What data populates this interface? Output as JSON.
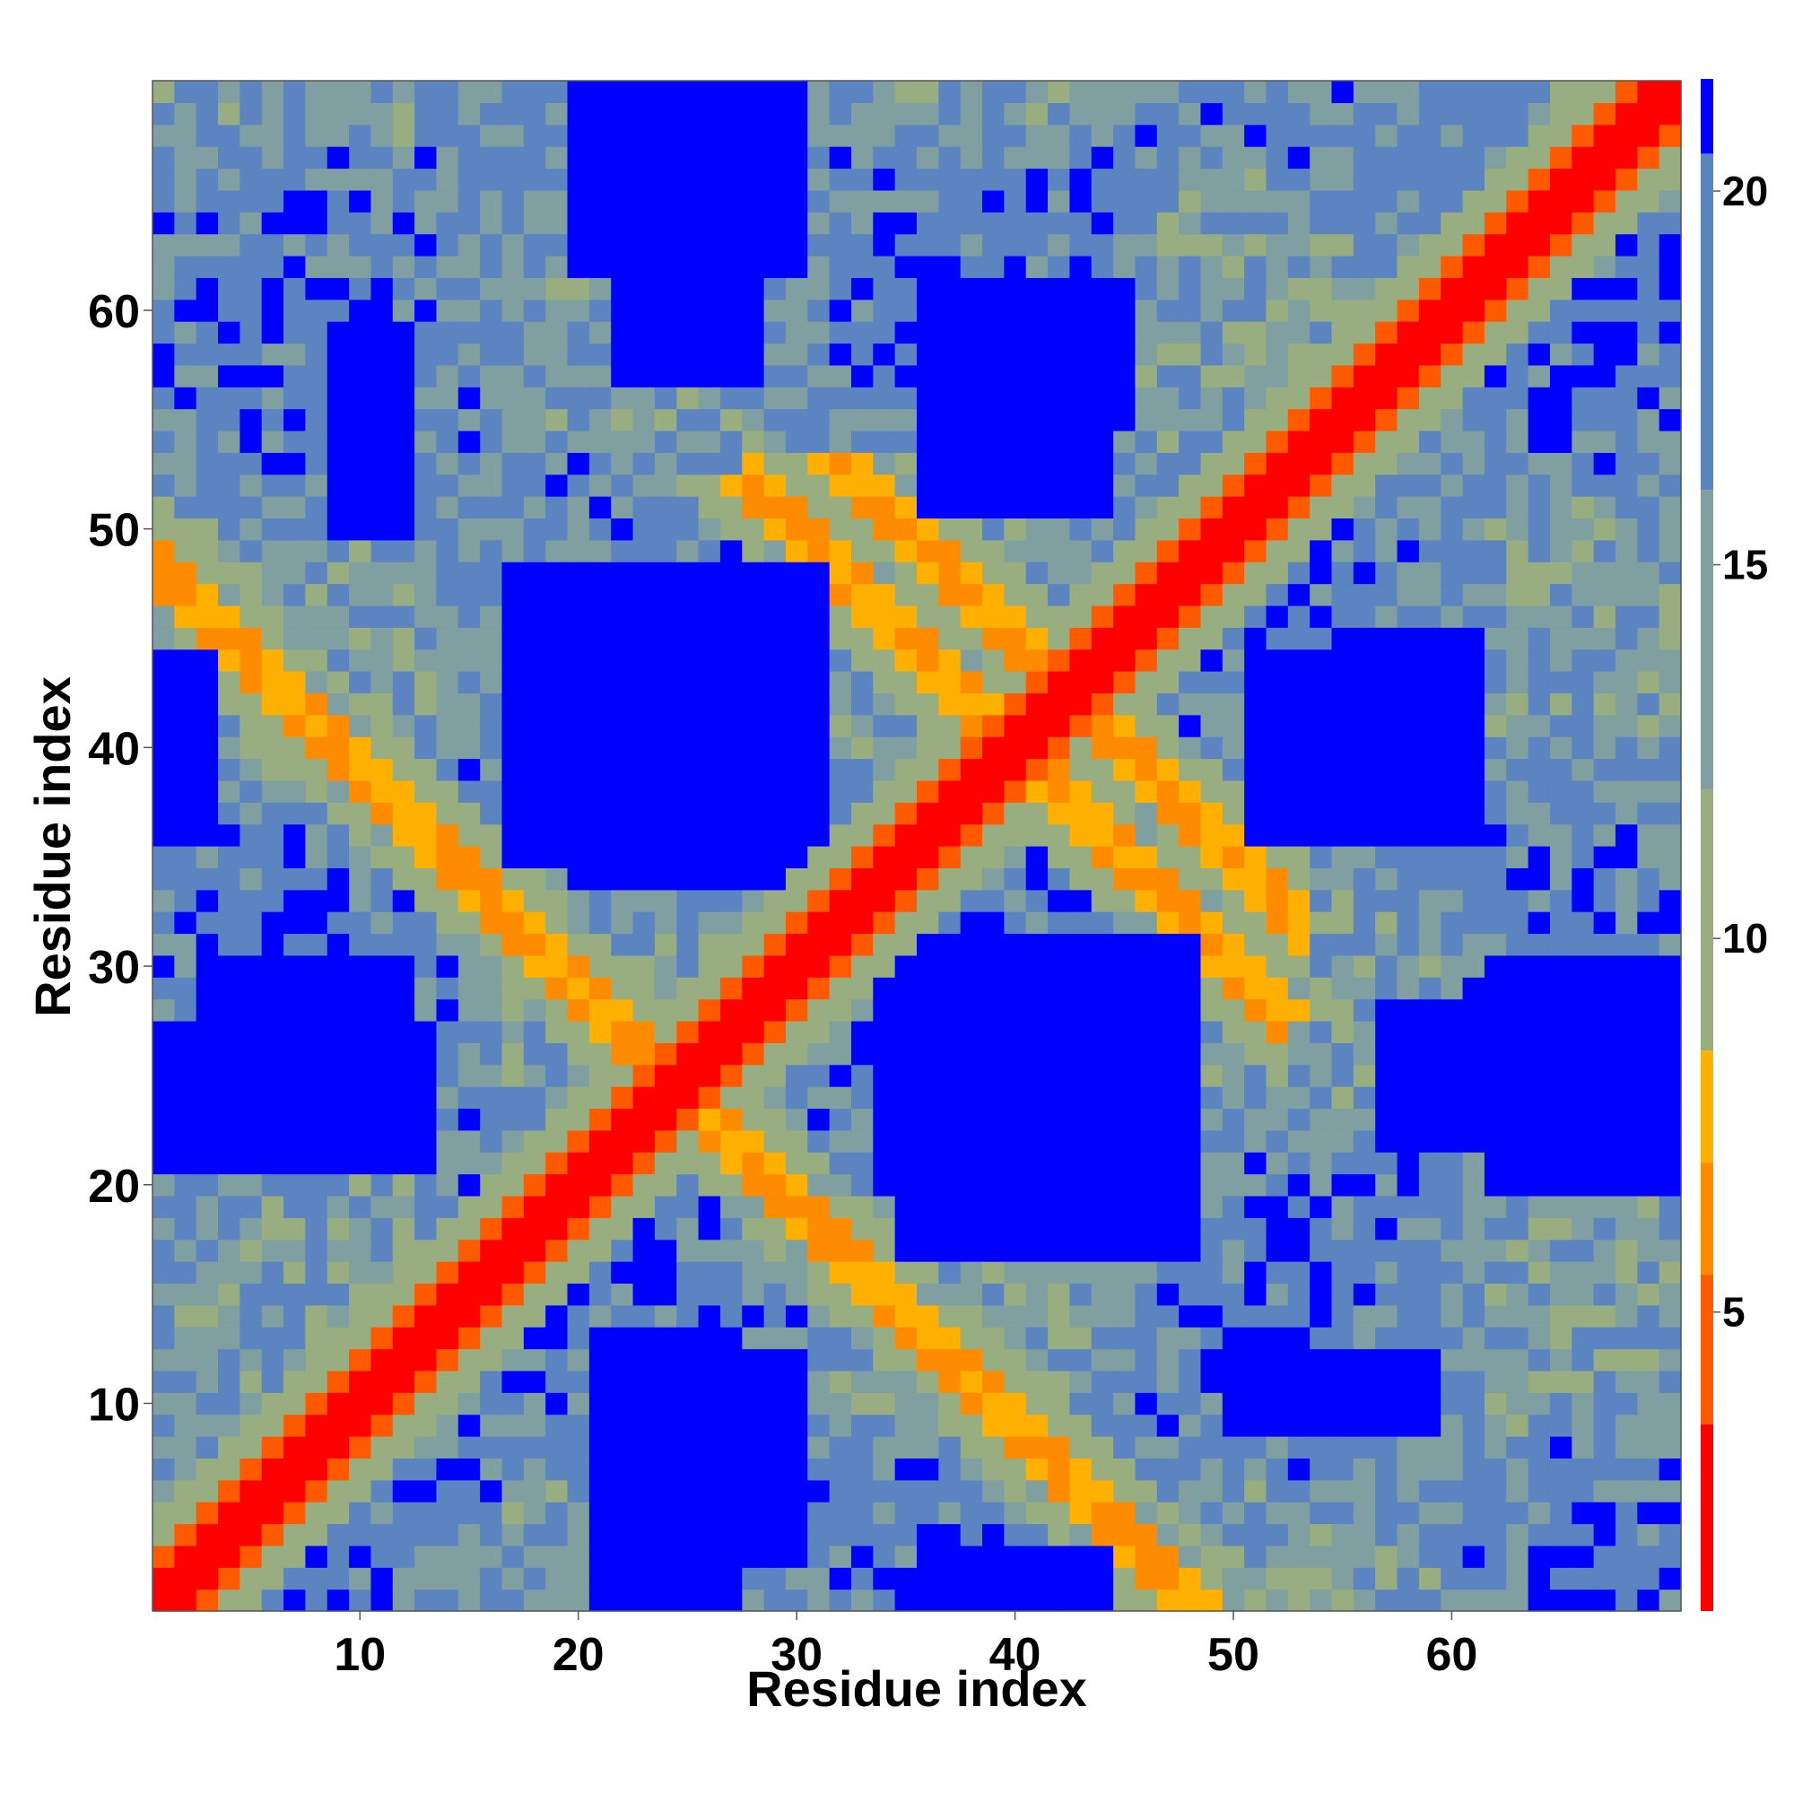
{
  "chart_data": {
    "type": "heatmap",
    "title": "",
    "xlabel": "Residue index",
    "ylabel": "Residue index",
    "n_residues": 70,
    "x_ticks": [
      10,
      20,
      30,
      40,
      50,
      60
    ],
    "y_ticks": [
      10,
      20,
      30,
      40,
      50,
      60
    ],
    "xlim": [
      1,
      70
    ],
    "ylim": [
      1,
      70
    ],
    "colorbar": {
      "ticks": [
        5,
        10,
        15,
        20
      ],
      "range": [
        1,
        21.5
      ],
      "bins": [
        {
          "min": 0,
          "max": 3.5,
          "color": "#ff0000"
        },
        {
          "min": 3.5,
          "max": 5.5,
          "color": "#ff5a00"
        },
        {
          "min": 5.5,
          "max": 7.0,
          "color": "#ff8c00"
        },
        {
          "min": 7.0,
          "max": 8.5,
          "color": "#ffb000"
        },
        {
          "min": 8.5,
          "max": 12.0,
          "color": "#98ae80"
        },
        {
          "min": 12.0,
          "max": 16.0,
          "color": "#7f9fa0"
        },
        {
          "min": 16.0,
          "max": 20.5,
          "color": "#5b84c0"
        },
        {
          "min": 20.5,
          "max": 99,
          "color": "#0000ff"
        }
      ]
    },
    "pattern": {
      "description_of_values": "pairwise residue distance map; symmetric; main diagonal = contact; anti-parallel contact bands",
      "contact_bands": [
        {
          "type": "diagonal",
          "offset": 0
        },
        {
          "type": "antidiagonal",
          "sum": 49,
          "range": [
            10,
            39
          ]
        },
        {
          "type": "antidiagonal",
          "sum": 49,
          "range": [
            1,
            20
          ]
        },
        {
          "type": "antidiagonal",
          "sum": 85,
          "range": [
            36,
            53
          ]
        },
        {
          "type": "antidiagonal",
          "sum": 80,
          "range": [
            28,
            52
          ]
        }
      ],
      "far_blocks": [
        {
          "x": [
            21,
            27
          ],
          "y": [
            1,
            13
          ]
        },
        {
          "x": [
            22,
            28
          ],
          "y": [
            57,
            70
          ]
        },
        {
          "x": [
            3,
            12
          ],
          "y": [
            21,
            30
          ]
        },
        {
          "x": [
            20,
            31
          ],
          "y": [
            34,
            48
          ]
        },
        {
          "x": [
            35,
            48
          ],
          "y": [
            17,
            31
          ]
        },
        {
          "x": [
            36,
            44
          ],
          "y": [
            51,
            58
          ]
        },
        {
          "x": [
            55,
            61
          ],
          "y": [
            36,
            45
          ]
        },
        {
          "x": [
            62,
            70
          ],
          "y": [
            20,
            30
          ]
        },
        {
          "x": [
            1,
            3
          ],
          "y": [
            36,
            44
          ]
        },
        {
          "x": [
            9,
            12
          ],
          "y": [
            50,
            59
          ]
        }
      ]
    }
  }
}
